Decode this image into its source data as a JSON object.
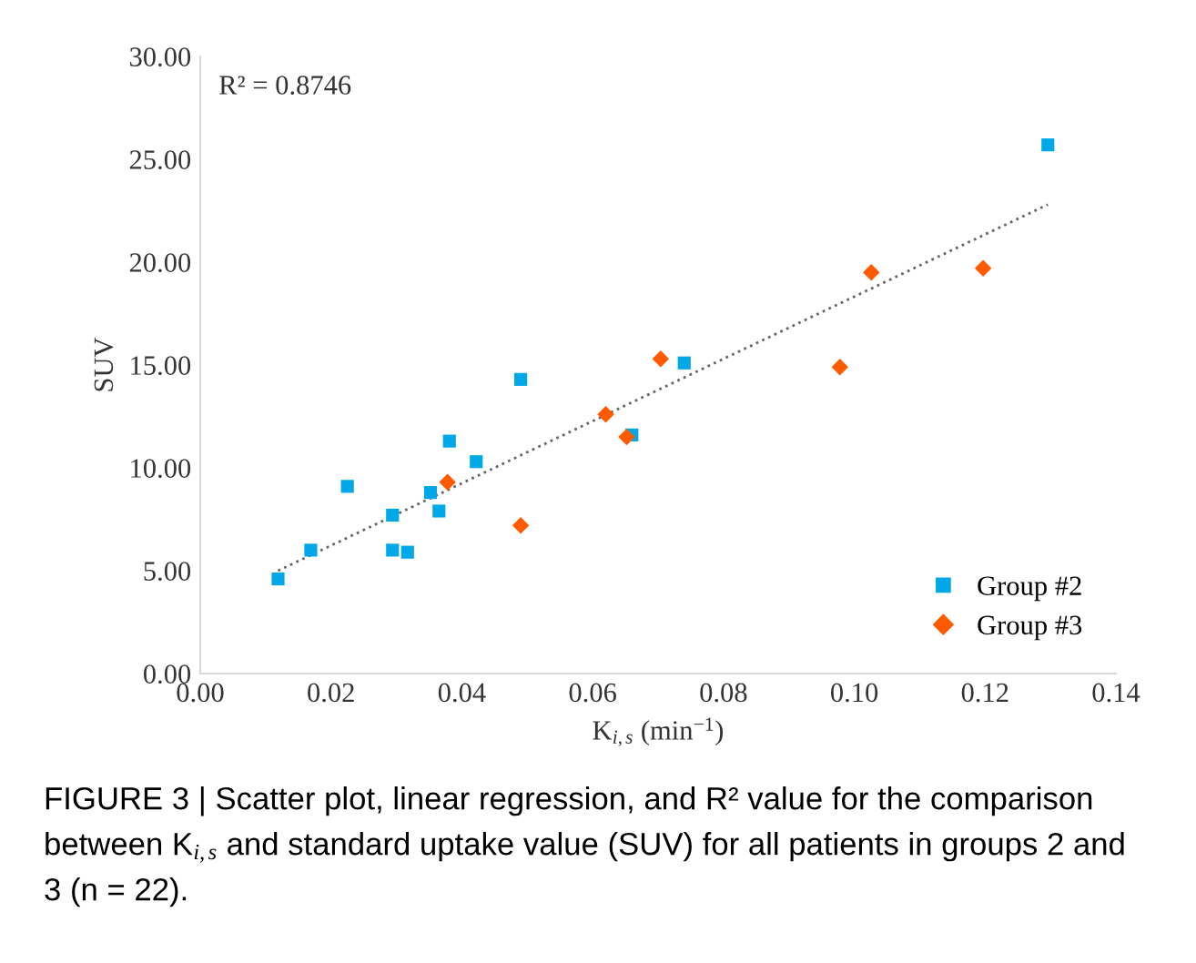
{
  "chart_data": {
    "type": "scatter",
    "xlabel": "K$_{i,s}$ (min$^{−1}$)",
    "ylabel": "SUV",
    "xlim": [
      0,
      0.14
    ],
    "ylim": [
      0,
      30
    ],
    "xticks": [
      {
        "value": 0,
        "label": "0.00"
      },
      {
        "value": 0.02,
        "label": "0.02"
      },
      {
        "value": 0.04,
        "label": "0.04"
      },
      {
        "value": 0.06,
        "label": "0.06"
      },
      {
        "value": 0.08,
        "label": "0.08"
      },
      {
        "value": 0.1,
        "label": "0.10"
      },
      {
        "value": 0.12,
        "label": "0.12"
      },
      {
        "value": 0.14,
        "label": "0.14"
      }
    ],
    "yticks": [
      {
        "value": 0,
        "label": "0.00"
      },
      {
        "value": 5,
        "label": "5.00"
      },
      {
        "value": 10,
        "label": "10.00"
      },
      {
        "value": 15,
        "label": "15.00"
      },
      {
        "value": 20,
        "label": "20.00"
      },
      {
        "value": 25,
        "label": "25.00"
      },
      {
        "value": 30,
        "label": "30.00"
      }
    ],
    "grid": false,
    "legend": "bottom right",
    "series": [
      {
        "name": "Group #2",
        "color": "#00a8e8",
        "marker": "square",
        "x": [
          0.0119,
          0.0169,
          0.0225,
          0.0294,
          0.0294,
          0.0317,
          0.0352,
          0.0365,
          0.0381,
          0.0422,
          0.049,
          0.066,
          0.074,
          0.1296
        ],
        "values": [
          4.6,
          6.0,
          9.1,
          6.0,
          7.7,
          5.9,
          8.8,
          7.9,
          11.3,
          10.3,
          14.3,
          11.6,
          15.1,
          25.7
        ]
      },
      {
        "name": "Group #3",
        "color": "#ff5a00",
        "marker": "diamond",
        "x": [
          0.0378,
          0.049,
          0.062,
          0.0652,
          0.0704,
          0.0978,
          0.1026,
          0.1197
        ],
        "values": [
          9.3,
          7.2,
          12.6,
          11.5,
          15.3,
          14.9,
          19.5,
          19.7
        ]
      },
      {
        "type": "line",
        "color": "#666666",
        "line_style": "dotted",
        "x": [
          0.0119,
          0.1296
        ],
        "values": [
          5.0,
          22.8
        ]
      }
    ],
    "annotations": [
      "R² = 0.8746",
      "FIGURE 3 | Scatter plot, linear regression, and R² value for the comparison",
      "between K$_{i,s}$ and standard uptake value (SUV) for all patients in groups 2 and",
      "3 (n = 22)."
    ]
  }
}
